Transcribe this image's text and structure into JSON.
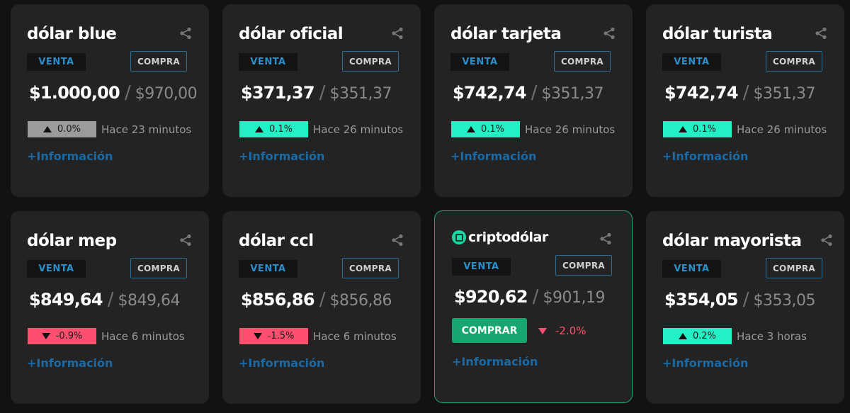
{
  "cards": [
    {
      "title": "dólar blue",
      "venta_label": "VENTA",
      "compra_label": "COMPRA",
      "venta": "$1.000,00",
      "separator": "/",
      "compra": "$970,00",
      "change": "0.0%",
      "direction": "up",
      "change_color": "#9b9b9b",
      "updated": "Hace 23 minutos",
      "info": "+Información"
    },
    {
      "title": "dólar oficial",
      "venta_label": "VENTA",
      "compra_label": "COMPRA",
      "venta": "$371,37",
      "separator": "/",
      "compra": "$351,37",
      "change": "0.1%",
      "direction": "up",
      "change_color": "#24f0c6",
      "updated": "Hace 26 minutos",
      "info": "+Información"
    },
    {
      "title": "dólar tarjeta",
      "venta_label": "VENTA",
      "compra_label": "COMPRA",
      "venta": "$742,74",
      "separator": "/",
      "compra": "$351,37",
      "change": "0.1%",
      "direction": "up",
      "change_color": "#24f0c6",
      "updated": "Hace 26 minutos",
      "info": "+Información"
    },
    {
      "title": "dólar turista",
      "venta_label": "VENTA",
      "compra_label": "COMPRA",
      "venta": "$742,74",
      "separator": "/",
      "compra": "$351,37",
      "change": "0.1%",
      "direction": "up",
      "change_color": "#24f0c6",
      "updated": "Hace 26 minutos",
      "info": "+Información"
    },
    {
      "title": "dólar mep",
      "venta_label": "VENTA",
      "compra_label": "COMPRA",
      "venta": "$849,64",
      "separator": "/",
      "compra": "$849,64",
      "change": "-0.9%",
      "direction": "down",
      "change_color": "#ff4f6f",
      "updated": "Hace 6 minutos",
      "info": "+Información"
    },
    {
      "title": "dólar ccl",
      "venta_label": "VENTA",
      "compra_label": "COMPRA",
      "venta": "$856,86",
      "separator": "/",
      "compra": "$856,86",
      "change": "-1.5%",
      "direction": "down",
      "change_color": "#ff4f6f",
      "updated": "Hace 6 minutos",
      "info": "+Información"
    },
    {
      "title": "dólar mayorista",
      "venta_label": "VENTA",
      "compra_label": "COMPRA",
      "venta": "$354,05",
      "separator": "/",
      "compra": "$353,05",
      "change": "0.2%",
      "direction": "up",
      "change_color": "#24f0c6",
      "updated": "Hace 3 horas",
      "info": "+Información"
    }
  ],
  "crypto": {
    "title": "criptodólar",
    "logo_icon": "criptodolar-logo-icon",
    "venta_label": "VENTA",
    "compra_label": "COMPRA",
    "venta": "$920,62",
    "separator": "/",
    "compra": "$901,19",
    "buy_label": "COMPRAR",
    "change": "-2.0%",
    "direction": "down",
    "change_color": "#ff4f6f",
    "info": "+Información",
    "border_color": "#1fa57b"
  },
  "colors": {
    "background": "#121212",
    "card": "#232323",
    "venta_text": "#2b8ec9",
    "info_link": "#1b6aa5",
    "buy_button": "#15a76f"
  }
}
